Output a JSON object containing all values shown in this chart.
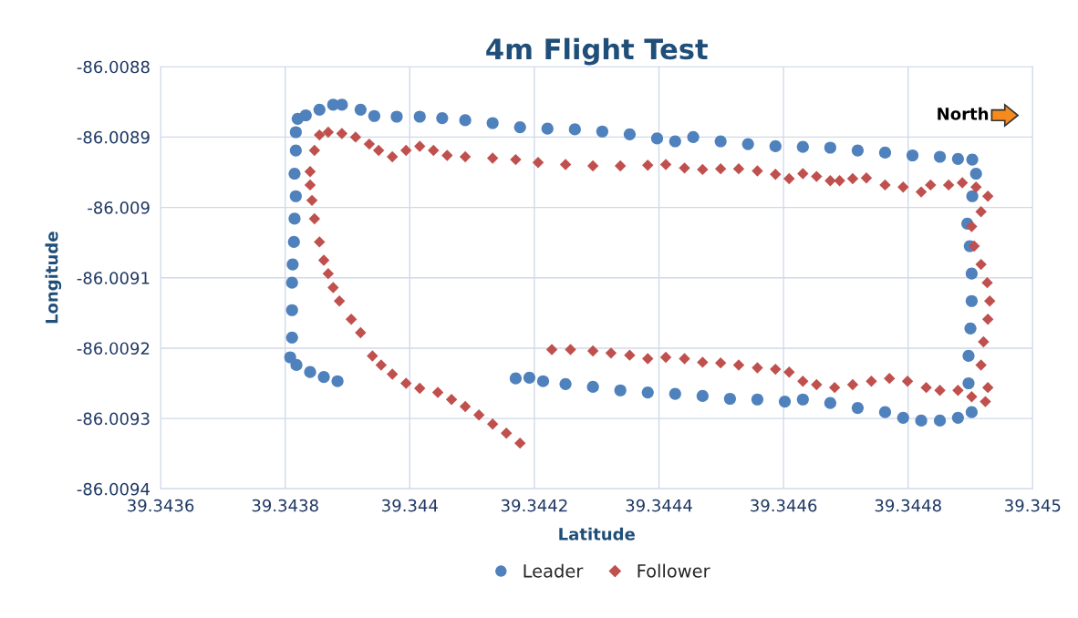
{
  "chart_data": {
    "type": "scatter",
    "title": "4m Flight Test",
    "xlabel": "Latitude",
    "ylabel": "Longitude",
    "xlim": [
      39.3436,
      39.345
    ],
    "xticks": [
      39.3436,
      39.3438,
      39.344,
      39.3442,
      39.3444,
      39.3446,
      39.3448,
      39.345
    ],
    "ylim": [
      -86.0094,
      -86.0088
    ],
    "yticks": [
      -86.0094,
      -86.0093,
      -86.0092,
      -86.0091,
      -86.009,
      -86.0089,
      -86.0088
    ],
    "grid": true,
    "legend": "bottom",
    "annotations": [
      "North"
    ],
    "series": [
      {
        "name": "Leader",
        "color": "#4f81bd",
        "marker": "circle",
        "x": [
          39.343884,
          39.343862,
          39.34384,
          39.343818,
          39.343808,
          39.343811,
          39.343811,
          39.343811,
          39.343812,
          39.343814,
          39.343815,
          39.343817,
          39.343815,
          39.343817,
          39.343817,
          39.34382,
          39.343833,
          39.343855,
          39.343877,
          39.343891,
          39.343921,
          39.343943,
          39.343979,
          39.344016,
          39.344052,
          39.344089,
          39.344133,
          39.344177,
          39.344221,
          39.344265,
          39.344309,
          39.344353,
          39.344397,
          39.344426,
          39.344455,
          39.344499,
          39.344543,
          39.344587,
          39.344631,
          39.344675,
          39.344719,
          39.344763,
          39.344807,
          39.344851,
          39.34488,
          39.344903,
          39.344909,
          39.344903,
          39.344895,
          39.344899,
          39.344902,
          39.344902,
          39.3449,
          39.344897,
          39.344897,
          39.344902,
          39.34488,
          39.344851,
          39.344821,
          39.344792,
          39.344763,
          39.344719,
          39.344675,
          39.344631,
          39.344602,
          39.344558,
          39.344514,
          39.34447,
          39.344426,
          39.344382,
          39.344338,
          39.344294,
          39.34425,
          39.344214,
          39.344192,
          39.34417
        ],
        "values": [
          -86.009247,
          -86.009241,
          -86.009234,
          -86.009224,
          -86.009213,
          -86.009185,
          -86.009146,
          -86.009107,
          -86.009081,
          -86.009049,
          -86.009016,
          -86.008984,
          -86.008952,
          -86.008919,
          -86.008893,
          -86.008874,
          -86.008869,
          -86.008861,
          -86.008854,
          -86.008854,
          -86.008861,
          -86.00887,
          -86.008871,
          -86.008871,
          -86.008873,
          -86.008876,
          -86.00888,
          -86.008886,
          -86.008888,
          -86.008889,
          -86.008892,
          -86.008896,
          -86.008902,
          -86.008906,
          -86.0089,
          -86.008906,
          -86.00891,
          -86.008913,
          -86.008914,
          -86.008915,
          -86.008919,
          -86.008922,
          -86.008926,
          -86.008928,
          -86.008931,
          -86.008932,
          -86.008952,
          -86.008984,
          -86.009023,
          -86.009055,
          -86.009094,
          -86.009133,
          -86.009172,
          -86.009211,
          -86.00925,
          -86.009291,
          -86.009299,
          -86.009303,
          -86.009303,
          -86.009299,
          -86.009291,
          -86.009285,
          -86.009278,
          -86.009273,
          -86.009276,
          -86.009273,
          -86.009272,
          -86.009268,
          -86.009265,
          -86.009263,
          -86.00926,
          -86.009255,
          -86.009251,
          -86.009247,
          -86.009242,
          -86.009243
        ]
      },
      {
        "name": "Follower",
        "color": "#c0504d",
        "marker": "diamond",
        "x": [
          39.344177,
          39.344155,
          39.344133,
          39.344111,
          39.344089,
          39.344067,
          39.344045,
          39.344016,
          39.343994,
          39.343972,
          39.343954,
          39.34394,
          39.343921,
          39.343906,
          39.343887,
          39.343877,
          39.343869,
          39.343862,
          39.343855,
          39.343847,
          39.343843,
          39.34384,
          39.34384,
          39.343847,
          39.343855,
          39.343869,
          39.343891,
          39.343913,
          39.343935,
          39.34395,
          39.343972,
          39.343994,
          39.344016,
          39.344038,
          39.34406,
          39.344089,
          39.344133,
          39.34417,
          39.344206,
          39.34425,
          39.344294,
          39.344338,
          39.344382,
          39.344411,
          39.344441,
          39.34447,
          39.344499,
          39.344528,
          39.344558,
          39.344587,
          39.344609,
          39.344631,
          39.344653,
          39.344675,
          39.34469,
          39.344711,
          39.344733,
          39.344763,
          39.344792,
          39.344821,
          39.344836,
          39.344865,
          39.344887,
          39.344909,
          39.344928,
          39.344917,
          39.344902,
          39.344906,
          39.344917,
          39.344927,
          39.344931,
          39.344928,
          39.344921,
          39.344917,
          39.344928,
          39.344924,
          39.344902,
          39.34488,
          39.344851,
          39.344829,
          39.344799,
          39.34477,
          39.344741,
          39.344711,
          39.344682,
          39.344653,
          39.344631,
          39.344609,
          39.344587,
          39.344558,
          39.344528,
          39.344499,
          39.34447,
          39.344441,
          39.344411,
          39.344382,
          39.344353,
          39.344323,
          39.344294,
          39.344258,
          39.344228
        ],
        "values": [
          -86.009335,
          -86.009321,
          -86.009308,
          -86.009295,
          -86.009283,
          -86.009273,
          -86.009263,
          -86.009257,
          -86.00925,
          -86.009237,
          -86.009224,
          -86.009211,
          -86.009178,
          -86.009159,
          -86.009133,
          -86.009114,
          -86.009094,
          -86.009075,
          -86.009049,
          -86.009016,
          -86.00899,
          -86.008968,
          -86.008949,
          -86.008919,
          -86.008897,
          -86.008893,
          -86.008895,
          -86.0089,
          -86.00891,
          -86.008919,
          -86.008928,
          -86.008919,
          -86.008913,
          -86.008919,
          -86.008926,
          -86.008928,
          -86.00893,
          -86.008932,
          -86.008936,
          -86.008939,
          -86.008941,
          -86.008941,
          -86.00894,
          -86.008939,
          -86.008944,
          -86.008946,
          -86.008945,
          -86.008945,
          -86.008948,
          -86.008953,
          -86.008959,
          -86.008952,
          -86.008956,
          -86.008962,
          -86.008962,
          -86.008959,
          -86.008958,
          -86.008968,
          -86.008971,
          -86.008978,
          -86.008968,
          -86.008968,
          -86.008965,
          -86.008971,
          -86.008984,
          -86.009006,
          -86.009027,
          -86.009055,
          -86.009081,
          -86.009107,
          -86.009133,
          -86.009159,
          -86.009191,
          -86.009224,
          -86.009256,
          -86.009276,
          -86.009269,
          -86.00926,
          -86.00926,
          -86.009256,
          -86.009247,
          -86.009243,
          -86.009247,
          -86.009252,
          -86.009256,
          -86.009252,
          -86.009247,
          -86.009234,
          -86.00923,
          -86.009228,
          -86.009224,
          -86.009221,
          -86.00922,
          -86.009215,
          -86.009213,
          -86.009215,
          -86.00921,
          -86.009207,
          -86.009204,
          -86.009202,
          -86.009202
        ]
      }
    ]
  }
}
